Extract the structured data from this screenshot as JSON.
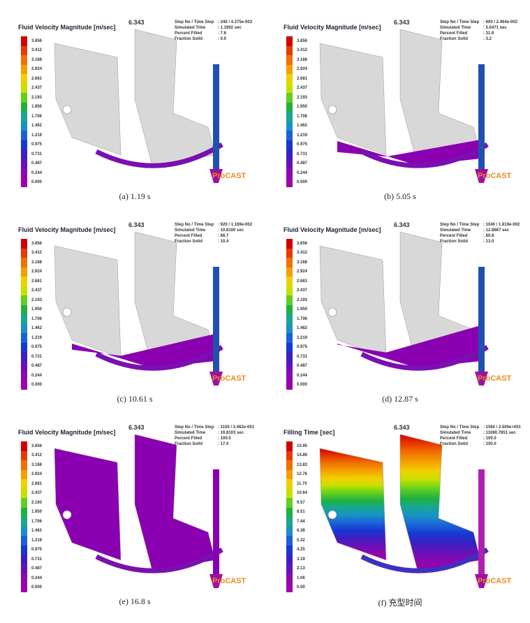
{
  "panels": [
    {
      "title": "Fluid Velocity Magnitude [m/sec]",
      "scale": "6.343",
      "brand": "ProCAST",
      "caption": "(a) 1.19 s",
      "legend": [
        "3.656",
        "3.412",
        "3.168",
        "2.924",
        "2.681",
        "2.437",
        "2.193",
        "1.950",
        "1.706",
        "1.462",
        "1.219",
        "0.975",
        "0.731",
        "0.487",
        "0.244",
        "0.000"
      ],
      "info": [
        {
          "label": "Step No / Time Step",
          "value": ": 240 / 4.375e-003"
        },
        {
          "label": "Simulated Time",
          "value": ": 1.1902 sec"
        },
        {
          "label": "Percent Filled",
          "value": ": 7.6"
        },
        {
          "label": "Fraction Solid",
          "value": ": 0.0"
        }
      ]
    },
    {
      "title": "Fluid Velocity Magnitude [m/sec]",
      "scale": "6.343",
      "brand": "ProCAST",
      "caption": "(b) 5.05 s",
      "legend": [
        "3.656",
        "3.412",
        "3.168",
        "2.924",
        "2.681",
        "2.437",
        "2.193",
        "1.950",
        "1.706",
        "1.462",
        "1.219",
        "0.975",
        "0.731",
        "0.487",
        "0.244",
        "0.000"
      ],
      "info": [
        {
          "label": "Step No / Time Step",
          "value": ": 600 / 2.464e-002"
        },
        {
          "label": "Simulated Time",
          "value": ": 5.0471 sec"
        },
        {
          "label": "Percent Filled",
          "value": ": 31.9"
        },
        {
          "label": "Fraction Solid",
          "value": ": 3.2"
        }
      ]
    },
    {
      "title": "Fluid Velocity Magnitude [m/sec]",
      "scale": "6.343",
      "brand": "ProCAST",
      "caption": "(c) 10.61 s",
      "legend": [
        "3.656",
        "3.412",
        "3.168",
        "2.924",
        "2.681",
        "2.437",
        "2.193",
        "1.950",
        "1.706",
        "1.462",
        "1.219",
        "0.975",
        "0.731",
        "0.487",
        "0.244",
        "0.000"
      ],
      "info": [
        {
          "label": "Step No / Time Step",
          "value": ": 920 / 1.169e-002"
        },
        {
          "label": "Simulated Time",
          "value": ": 10.6100 sec"
        },
        {
          "label": "Percent Filled",
          "value": ": 66.7"
        },
        {
          "label": "Fraction Solid",
          "value": ": 10.4"
        }
      ]
    },
    {
      "title": "Fluid Velocity Magnitude [m/sec]",
      "scale": "6.343",
      "brand": "ProCAST",
      "caption": "(d) 12.87 s",
      "legend": [
        "3.656",
        "3.412",
        "3.168",
        "2.924",
        "2.681",
        "2.437",
        "2.193",
        "1.950",
        "1.706",
        "1.462",
        "1.219",
        "0.975",
        "0.731",
        "0.487",
        "0.244",
        "0.000"
      ],
      "info": [
        {
          "label": "Step No / Time Step",
          "value": ": 1040 / 1.819e-002"
        },
        {
          "label": "Simulated Time",
          "value": ": 12.8667 sec"
        },
        {
          "label": "Percent Filled",
          "value": ": 80.8"
        },
        {
          "label": "Fraction Solid",
          "value": ": 13.0"
        }
      ]
    },
    {
      "title": "Fluid Velocity Magnitude [m/sec]",
      "scale": "6.343",
      "brand": "ProCAST",
      "caption": "(e) 16.8 s",
      "legend": [
        "3.656",
        "3.412",
        "3.168",
        "2.924",
        "2.681",
        "2.437",
        "2.193",
        "1.950",
        "1.706",
        "1.462",
        "1.219",
        "0.975",
        "0.731",
        "0.487",
        "0.244",
        "0.000"
      ],
      "info": [
        {
          "label": "Step No / Time Step",
          "value": ": 1100 / 3.462e-001"
        },
        {
          "label": "Simulated Time",
          "value": ": 16.8103 sec"
        },
        {
          "label": "Percent Filled",
          "value": ": 100.0"
        },
        {
          "label": "Fraction Solid",
          "value": ": 17.0"
        }
      ]
    },
    {
      "title": "Filling Time [sec]",
      "scale": "6.343",
      "brand": "ProCAST",
      "caption": "(f) 充型时间",
      "legend": [
        "15.95",
        "14.89",
        "13.83",
        "12.76",
        "11.70",
        "10.64",
        "9.57",
        "8.51",
        "7.44",
        "6.38",
        "5.32",
        "4.25",
        "3.19",
        "2.13",
        "1.06",
        "0.00"
      ],
      "info": [
        {
          "label": "Step No / Time Step",
          "value": ": 1560 / 2.500e+001"
        },
        {
          "label": "Simulated Time",
          "value": ": 11080.7851 sec"
        },
        {
          "label": "Percent Filled",
          "value": ": 100.0"
        },
        {
          "label": "Fraction Solid",
          "value": ": 100.0"
        }
      ]
    }
  ]
}
